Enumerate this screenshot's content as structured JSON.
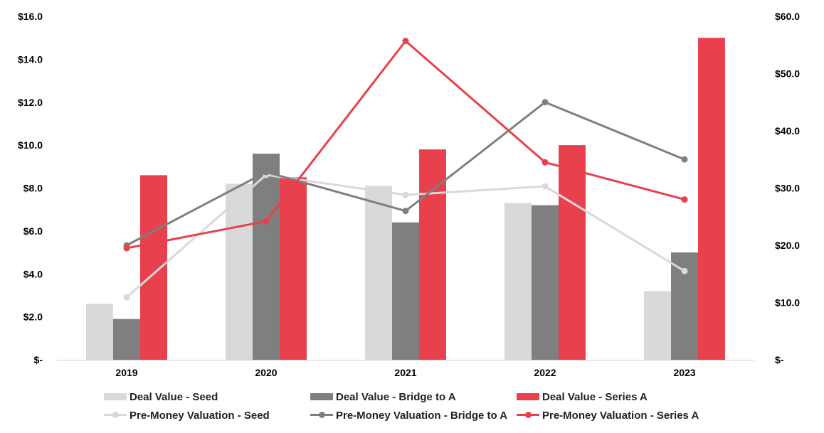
{
  "chart_data": {
    "type": "bar",
    "categories": [
      "2019",
      "2020",
      "2021",
      "2022",
      "2023"
    ],
    "y_left": {
      "ylim": [
        0,
        16
      ],
      "ticks": [
        0,
        2,
        4,
        6,
        8,
        10,
        12,
        14,
        16
      ],
      "tick_labels": [
        "$-",
        "$2.0",
        "$4.0",
        "$6.0",
        "$8.0",
        "$10.0",
        "$12.0",
        "$14.0",
        "$16.0"
      ]
    },
    "y_right": {
      "ylim": [
        0,
        60
      ],
      "ticks": [
        0,
        10,
        20,
        30,
        40,
        50,
        60
      ],
      "tick_labels": [
        "$-",
        "$10.0",
        "$20.0",
        "$30.0",
        "$40.0",
        "$50.0",
        "$60.0"
      ]
    },
    "bar_series": [
      {
        "name": "Deal Value - Seed",
        "color": "#d9d9d9",
        "values": [
          2.6,
          8.2,
          8.1,
          7.3,
          3.2
        ]
      },
      {
        "name": "Deal Value - Bridge to A",
        "color": "#7f7f7f",
        "values": [
          1.9,
          9.6,
          6.4,
          7.2,
          5.0
        ]
      },
      {
        "name": "Deal Value - Series A",
        "color": "#e8404c",
        "values": [
          8.6,
          8.5,
          9.8,
          10.0,
          15.0
        ]
      }
    ],
    "line_series": [
      {
        "name": "Pre-Money Valuation - Seed",
        "color": "#d9d9d9",
        "axis": "right",
        "values": [
          10.9,
          32.3,
          28.8,
          30.3,
          15.5
        ]
      },
      {
        "name": "Pre-Money Valuation - Bridge to A",
        "color": "#7f7f7f",
        "axis": "right",
        "values": [
          20.0,
          32.8,
          26.0,
          45.0,
          35.0
        ]
      },
      {
        "name": "Pre-Money Valuation - Series A",
        "color": "#e8404c",
        "axis": "right",
        "values": [
          19.5,
          24.2,
          55.7,
          34.5,
          28.0
        ]
      }
    ],
    "grid": false,
    "legend_position": "bottom"
  },
  "legend": [
    {
      "label": "Deal Value - Seed",
      "kind": "box",
      "color": "#d9d9d9"
    },
    {
      "label": "Deal Value - Bridge to A",
      "kind": "box",
      "color": "#7f7f7f"
    },
    {
      "label": "Deal Value - Series A",
      "kind": "box",
      "color": "#e8404c"
    },
    {
      "label": "Pre-Money Valuation - Seed",
      "kind": "line",
      "color": "#d9d9d9"
    },
    {
      "label": "Pre-Money Valuation - Bridge to A",
      "kind": "line",
      "color": "#7f7f7f"
    },
    {
      "label": "Pre-Money Valuation - Series A",
      "kind": "line",
      "color": "#e8404c"
    }
  ]
}
